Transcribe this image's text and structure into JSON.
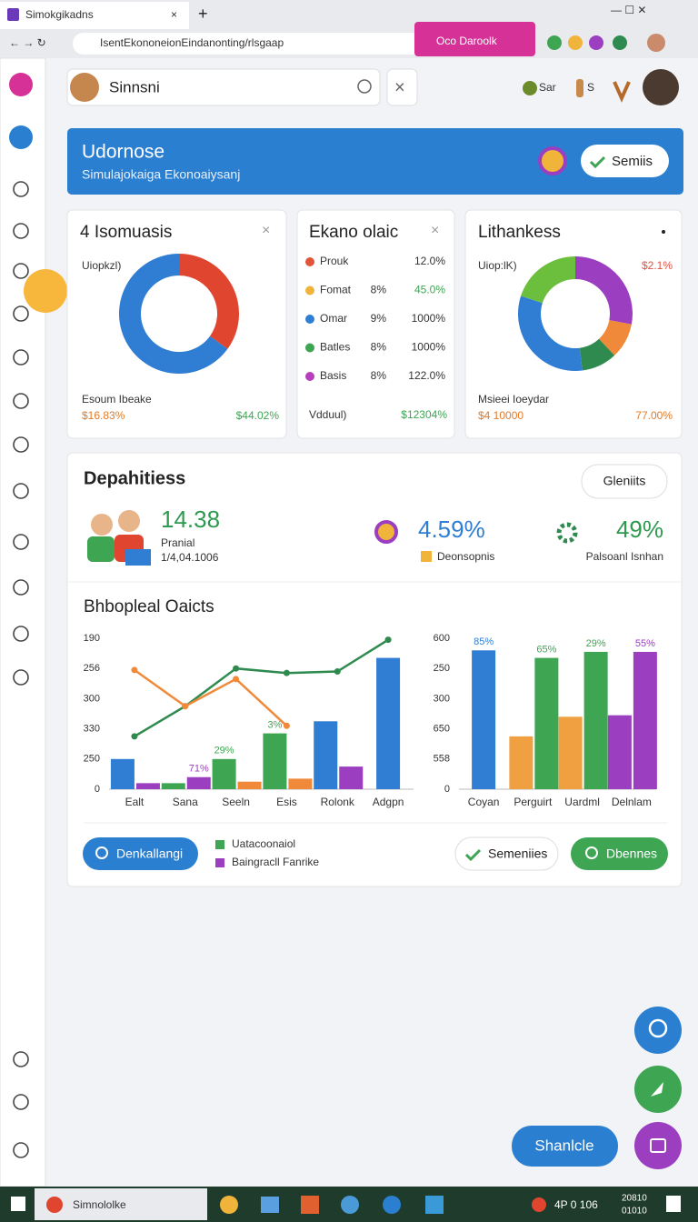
{
  "browser": {
    "tab_title": "Simokgikadns",
    "address": "IsentEkononeionEindanonting/rlsgaap",
    "action_button": "Oco Daroolk"
  },
  "search": {
    "query": "Sinnsni"
  },
  "header_items": [
    "Sar",
    "S"
  ],
  "banner": {
    "title": "Udornose",
    "subtitle": "Simulajokaiga Ekonoaiysanj",
    "button": "Semiis"
  },
  "cards": [
    {
      "title": "4 Isomuasis",
      "label": "Uiopkzl)",
      "footer_label": "Esoum Ibeake",
      "footer_left": "$16.83%",
      "footer_right": "$44.02%",
      "donut": [
        {
          "value": 35,
          "color": "#e0452f"
        },
        {
          "value": 65,
          "color": "#2f7ed3"
        }
      ]
    },
    {
      "title": "Ekano olaic",
      "footer_label": "Vdduul)",
      "footer_right": "$12304%",
      "rows": [
        {
          "label": "Prouk",
          "value": "12.0%",
          "color": "#e2553a"
        },
        {
          "label": "Fomat",
          "share": "8%",
          "value": "45.0%",
          "color": "#f0b43a"
        },
        {
          "label": "Omar",
          "share": "9%",
          "value": "1000%",
          "color": "#2f7ed3"
        },
        {
          "label": "Batles",
          "share": "8%",
          "value": "1000%",
          "color": "#3ea553"
        },
        {
          "label": "Basis",
          "share": "8%",
          "value": "122.0%",
          "color": "#b63fbe"
        }
      ]
    },
    {
      "title": "Lithankess",
      "label": "Uiop:lK)",
      "label_right": "$2.1%",
      "footer_label": "Msieei Ioeydar",
      "footer_left": "$4 10000",
      "footer_right": "77.00%",
      "donut": [
        {
          "value": 28,
          "color": "#9b3fc0"
        },
        {
          "value": 10,
          "color": "#f08a3a"
        },
        {
          "value": 10,
          "color": "#2e8a4f"
        },
        {
          "value": 32,
          "color": "#2f7ed3"
        },
        {
          "value": 20,
          "color": "#6cbf3c"
        }
      ]
    }
  ],
  "panel": {
    "title": "Depahitiess",
    "button": "Gleniits",
    "stats": [
      {
        "value": "14.38",
        "label": "Pranial",
        "sub": "1/4,04.1006"
      },
      {
        "value": "4.59%",
        "label": "Deonsopnis"
      },
      {
        "value": "49%",
        "label": "Palsoanl Isnhan"
      }
    ],
    "chart_title": "Bhbopleal Oaicts",
    "buttons": [
      "Denkallangi",
      "Semeniies",
      "Dbennes"
    ]
  },
  "chart_data": [
    {
      "type": "bar",
      "categories": [
        "Ealt",
        "Sana",
        "Seeln",
        "Esis",
        "Rolonk",
        "Adgpn"
      ],
      "y_axis_labels": [
        "190",
        "256",
        "300",
        "330",
        "250",
        "0"
      ],
      "ylim": [
        0,
        100
      ],
      "series": [
        {
          "color": "#2f7ed3",
          "values": [
            20,
            null,
            null,
            null,
            45,
            87
          ]
        },
        {
          "name": "Uatacoonaiol",
          "color": "#3ea553",
          "values": [
            null,
            4,
            20,
            37,
            null,
            null
          ]
        },
        {
          "name": "Baingracll Fanrike",
          "color": "#9b3fc0",
          "values": [
            4,
            8,
            null,
            null,
            15,
            null
          ]
        },
        {
          "color": "#f08a3a",
          "values": [
            null,
            null,
            5,
            7,
            null,
            null
          ]
        }
      ],
      "lines": [
        {
          "color": "#2e8a4f",
          "values": [
            35,
            55,
            80,
            77,
            78,
            99
          ]
        },
        {
          "color": "#ef8a3a",
          "values": [
            79,
            55,
            73,
            42,
            null,
            null
          ]
        }
      ],
      "annotations": [
        {
          "label": "71%",
          "series": 2,
          "index": 1
        },
        {
          "label": "29%",
          "series": 1,
          "index": 2
        },
        {
          "label": "3%",
          "series": 1,
          "index": 3
        }
      ]
    },
    {
      "type": "bar",
      "categories": [
        "Coyan",
        "Perguirt",
        "Uardml",
        "Delnlam"
      ],
      "y_axis_labels": [
        "600",
        "250",
        "300",
        "650",
        "558",
        "0"
      ],
      "ylim": [
        0,
        100
      ],
      "series": [
        {
          "color": "#2f7ed3",
          "values": [
            92,
            null,
            null,
            null
          ]
        },
        {
          "color": "#f0a040",
          "values": [
            null,
            35,
            48,
            null
          ]
        },
        {
          "color": "#3ea553",
          "values": [
            null,
            87,
            91,
            null
          ]
        },
        {
          "color": "#9b3fc0",
          "values": [
            null,
            null,
            null,
            49
          ]
        },
        {
          "color": "#9b3fc0",
          "values": [
            null,
            null,
            null,
            91
          ]
        }
      ],
      "annotations": [
        {
          "label": "85%",
          "series": 0,
          "index": 0
        },
        {
          "label": "65%",
          "series": 2,
          "index": 1
        },
        {
          "label": "29%",
          "series": 2,
          "index": 2
        },
        {
          "label": "55%",
          "series": 4,
          "index": 3
        }
      ]
    }
  ],
  "fab": {
    "button": "Shanlcle"
  },
  "taskbar": {
    "app": "Simnololke",
    "status": "4P 0 106",
    "time": "20810",
    "date": "01010"
  }
}
